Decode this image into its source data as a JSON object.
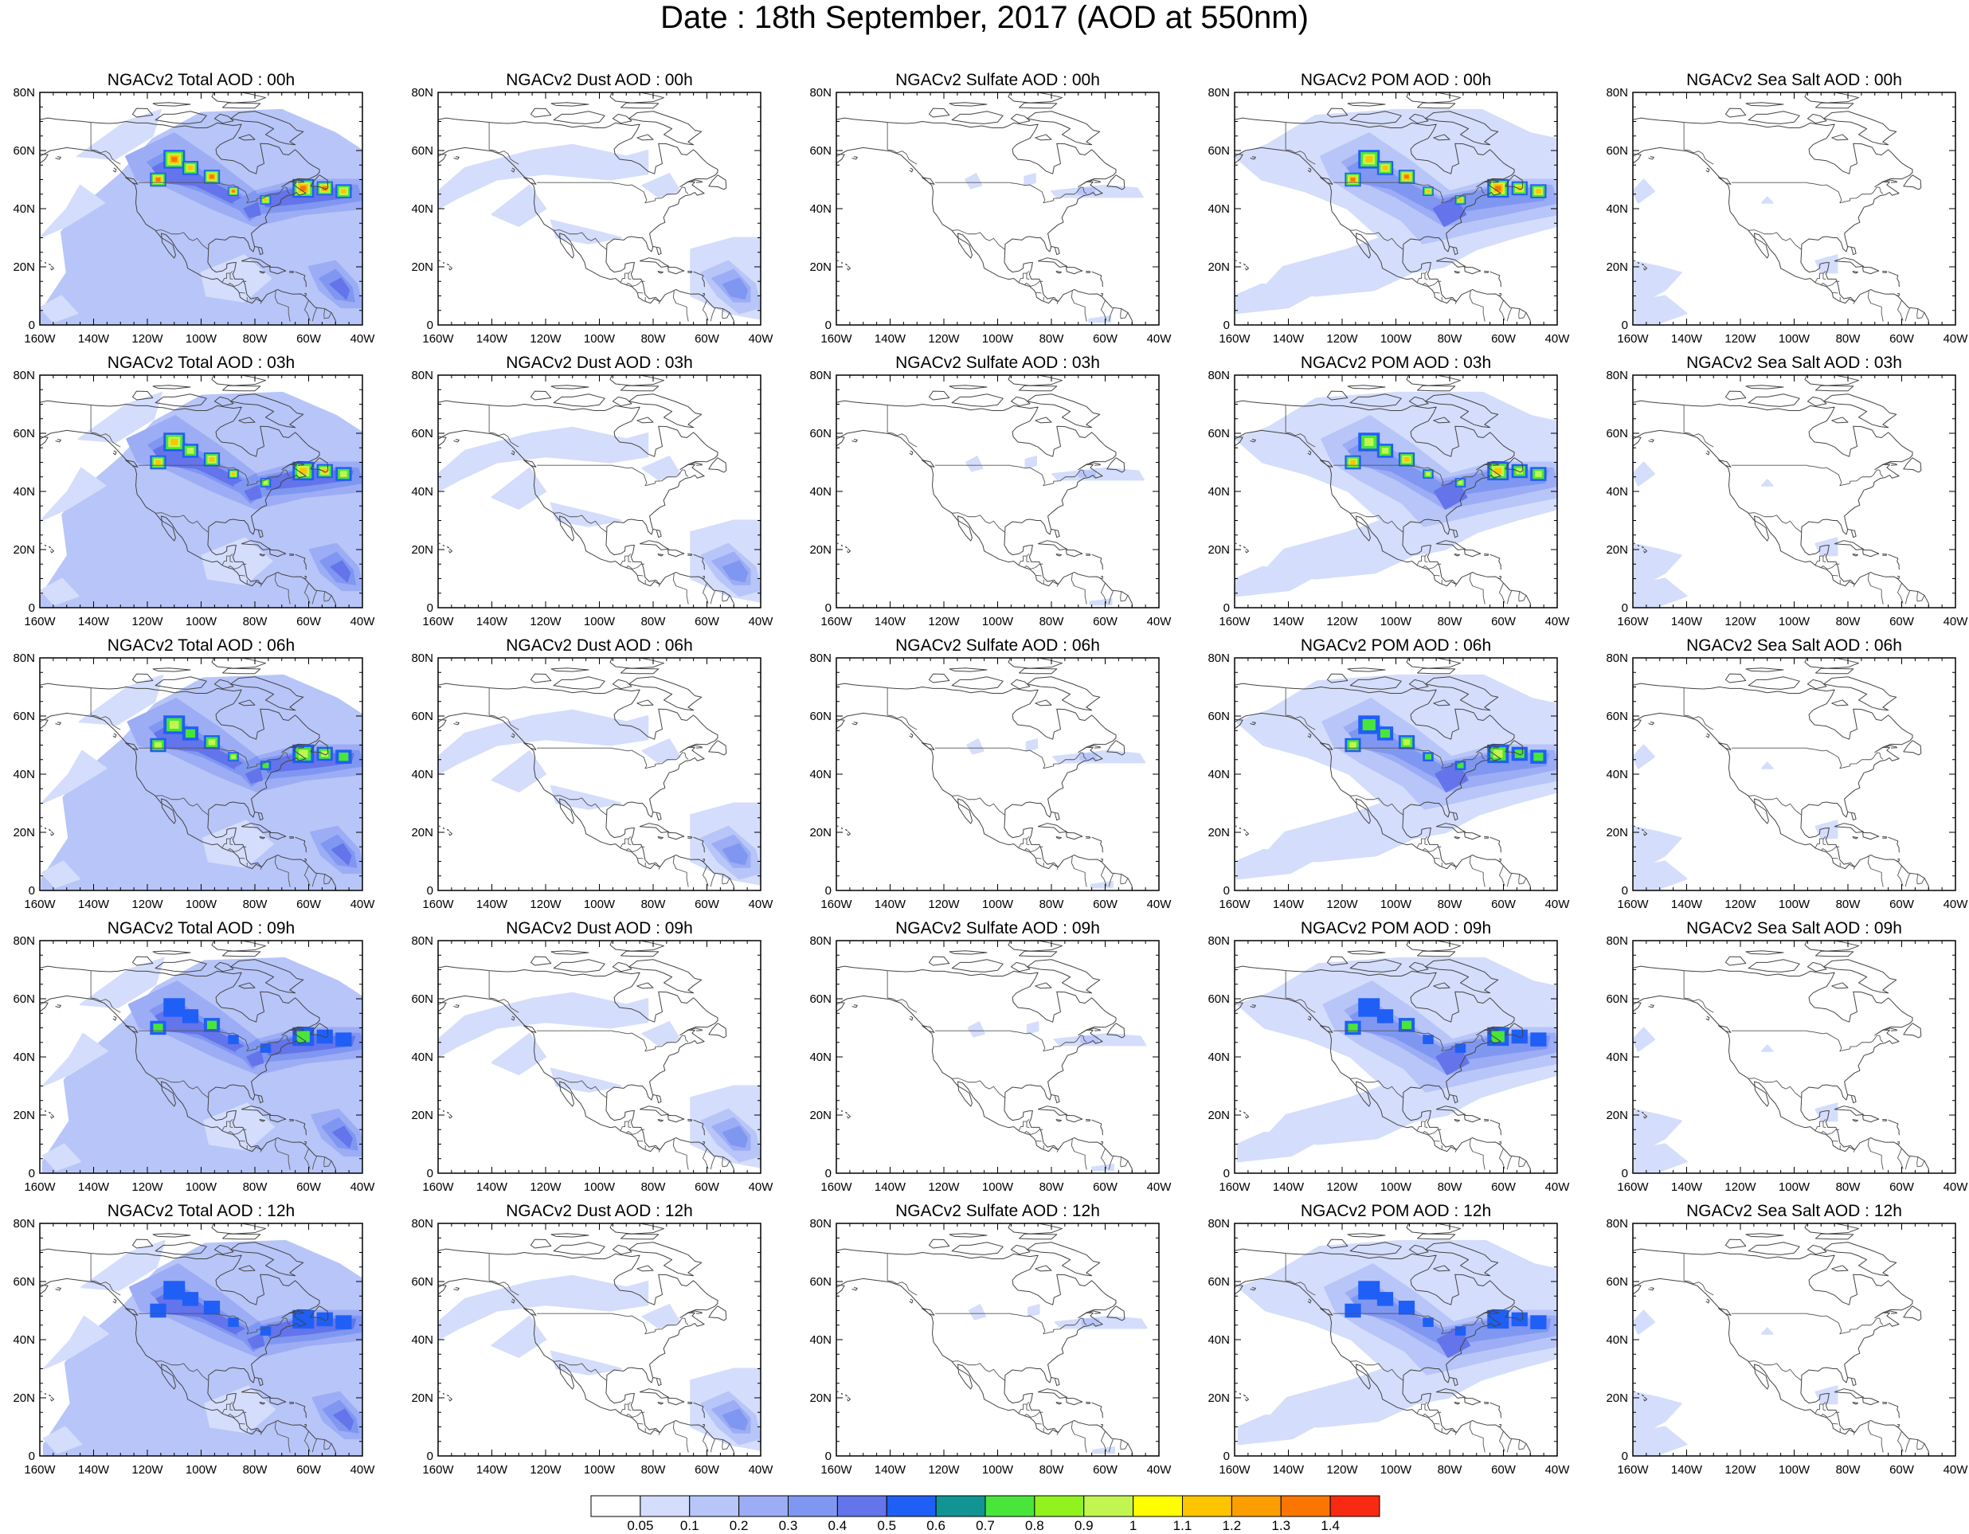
{
  "title": "Date : 18th September, 2017 (AOD at 550nm)",
  "lat_ticks": [
    "0",
    "20N",
    "40N",
    "60N",
    "80N"
  ],
  "lon_ticks": [
    "160W",
    "140W",
    "120W",
    "100W",
    "80W",
    "60W",
    "40W"
  ],
  "panels": [
    [
      "NGACv2 Total AOD : 00h",
      "NGACv2 Dust AOD : 00h",
      "NGACv2 Sulfate AOD : 00h",
      "NGACv2 POM AOD : 00h",
      "NGACv2 Sea Salt AOD : 00h"
    ],
    [
      "NGACv2 Total AOD : 03h",
      "NGACv2 Dust AOD : 03h",
      "NGACv2 Sulfate AOD : 03h",
      "NGACv2 POM AOD : 03h",
      "NGACv2 Sea Salt AOD : 03h"
    ],
    [
      "NGACv2 Total AOD : 06h",
      "NGACv2 Dust AOD : 06h",
      "NGACv2 Sulfate AOD : 06h",
      "NGACv2 POM AOD : 06h",
      "NGACv2 Sea Salt AOD : 06h"
    ],
    [
      "NGACv2 Total AOD : 09h",
      "NGACv2 Dust AOD : 09h",
      "NGACv2 Sulfate AOD : 09h",
      "NGACv2 POM AOD : 09h",
      "NGACv2 Sea Salt  AOD : 09h"
    ],
    [
      "NGACv2 Total AOD  : 12h",
      "NGACv2 Dust AOD : 12h",
      "NGACv2 Sulfate AOD : 12h",
      "NGACv2 POM  AOD : 12h",
      "NGACv2 Sea Salt  AOD : 12h"
    ]
  ],
  "colorbar": {
    "colors": [
      "#ffffff",
      "#d4ddfb",
      "#b8c5f8",
      "#9cadf5",
      "#8097f2",
      "#6474ea",
      "#1f5ff5",
      "#129494",
      "#49e53a",
      "#91f21e",
      "#c3f550",
      "#fefe00",
      "#fdc400",
      "#fd9e00",
      "#fb7600",
      "#f92a12"
    ],
    "labels": [
      "0.05",
      "0.1",
      "0.2",
      "0.3",
      "0.4",
      "0.5",
      "0.6",
      "0.7",
      "0.8",
      "0.9",
      "1",
      "1.1",
      "1.2",
      "1.3",
      "1.4"
    ]
  }
}
